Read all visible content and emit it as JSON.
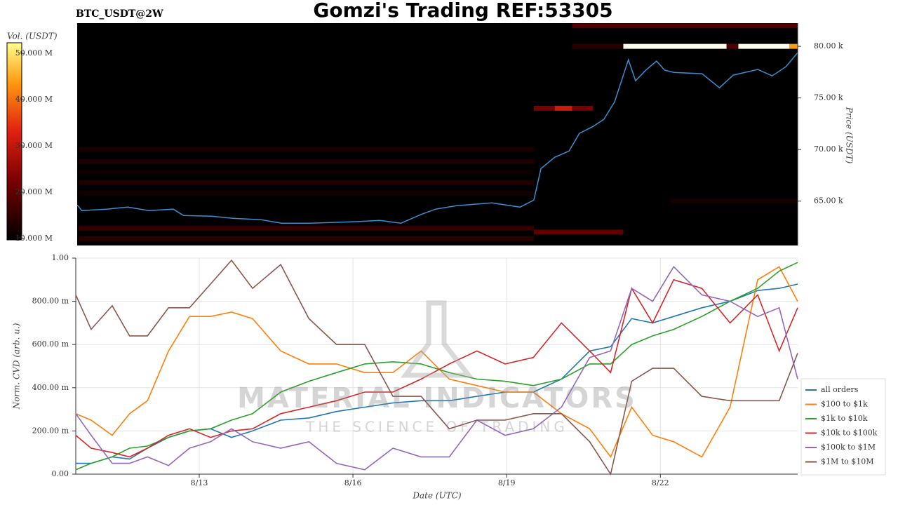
{
  "chart_data": [
    {
      "type": "heatmap",
      "title": "Gomzi's Trading REF:53305",
      "subtitle": "BTC_USDT@2W",
      "ylabel": "Price (USDT)",
      "xlim": [
        10.59,
        24.68
      ],
      "ylim": [
        60700,
        82250
      ],
      "yticks": [
        {
          "value": 65000,
          "label": "65.00 k"
        },
        {
          "value": 70000,
          "label": "70.00 k"
        },
        {
          "value": 75000,
          "label": "75.00 k"
        },
        {
          "value": 80000,
          "label": "80.00 k"
        }
      ],
      "colorbar": {
        "label": "Vol. (USDT)",
        "lim": [
          9700000,
          52300000
        ],
        "ticks": [
          {
            "value": 10000000,
            "label": "10.000 M"
          },
          {
            "value": 20000000,
            "label": "20.000 M"
          },
          {
            "value": 30000000,
            "label": "30.000 M"
          },
          {
            "value": 40000000,
            "label": "40.000 M"
          },
          {
            "value": 50000000,
            "label": "50.000 M"
          }
        ]
      },
      "levels": [
        {
          "price": 82000,
          "start": 20.27,
          "end": 24.68,
          "volume": 18000000
        },
        {
          "price": 80000,
          "start": 20.27,
          "end": 21.27,
          "volume": 14000000
        },
        {
          "price": 80000,
          "start": 21.27,
          "end": 23.29,
          "volume": 52000000
        },
        {
          "price": 80000,
          "start": 23.29,
          "end": 23.52,
          "volume": 18000000
        },
        {
          "price": 80000,
          "start": 23.52,
          "end": 24.52,
          "volume": 52000000
        },
        {
          "price": 80000,
          "start": 24.52,
          "end": 24.68,
          "volume": 44000000
        },
        {
          "price": 74000,
          "start": 19.52,
          "end": 19.93,
          "volume": 22000000
        },
        {
          "price": 74000,
          "start": 19.93,
          "end": 20.27,
          "volume": 31000000
        },
        {
          "price": 74000,
          "start": 20.27,
          "end": 20.68,
          "volume": 22000000
        },
        {
          "price": 70000,
          "start": 10.62,
          "end": 19.52,
          "volume": 12000000
        },
        {
          "price": 68840,
          "start": 10.62,
          "end": 19.52,
          "volume": 13000000
        },
        {
          "price": 67820,
          "start": 10.62,
          "end": 19.52,
          "volume": 11000000
        },
        {
          "price": 66800,
          "start": 10.62,
          "end": 19.52,
          "volume": 13000000
        },
        {
          "price": 65780,
          "start": 10.62,
          "end": 19.52,
          "volume": 11500000
        },
        {
          "price": 65000,
          "start": 22.19,
          "end": 24.68,
          "volume": 12000000
        },
        {
          "price": 62380,
          "start": 10.62,
          "end": 19.52,
          "volume": 15000000
        },
        {
          "price": 61360,
          "start": 10.62,
          "end": 19.52,
          "volume": 14000000
        },
        {
          "price": 62000,
          "start": 19.52,
          "end": 21.27,
          "volume": 20000000
        }
      ],
      "price_line": {
        "color": "#3a8fd0",
        "x": [
          10.59,
          10.68,
          11.16,
          11.58,
          11.99,
          12.47,
          12.67,
          13.22,
          13.63,
          14.18,
          14.59,
          15.14,
          15.96,
          16.51,
          16.92,
          17.33,
          17.6,
          18.01,
          18.7,
          19.25,
          19.52,
          19.66,
          19.93,
          20.21,
          20.41,
          20.68,
          20.89,
          21.1,
          21.37,
          21.51,
          21.71,
          21.92,
          22.08,
          22.26,
          22.81,
          23.15,
          23.42,
          23.9,
          24.18,
          24.45,
          24.68
        ],
        "values": [
          64626,
          64080,
          64220,
          64420,
          64080,
          64220,
          63600,
          63540,
          63330,
          63200,
          62860,
          62860,
          62990,
          63130,
          62860,
          63740,
          64220,
          64560,
          64830,
          64420,
          65100,
          68160,
          69250,
          69860,
          71560,
          72240,
          72930,
          74630,
          78710,
          76670,
          77690,
          78570,
          77690,
          77480,
          77350,
          75990,
          77210,
          77760,
          77140,
          78030,
          79390
        ]
      }
    },
    {
      "type": "line",
      "xlabel": "Date (UTC)",
      "ylabel": "Norm. CVD (arb. u.)",
      "xlim": [
        10.59,
        24.68
      ],
      "ylim": [
        0,
        1
      ],
      "xticks": [
        {
          "value": 13,
          "label": "8/13"
        },
        {
          "value": 16,
          "label": "8/16"
        },
        {
          "value": 19,
          "label": "8/19"
        },
        {
          "value": 22,
          "label": "8/22"
        }
      ],
      "yticks": [
        {
          "value": 0,
          "label": "0.00"
        },
        {
          "value": 0.2,
          "label": "200.00 m"
        },
        {
          "value": 0.4,
          "label": "400.00 m"
        },
        {
          "value": 0.6,
          "label": "600.00 m"
        },
        {
          "value": 0.8,
          "label": "800.00 m"
        },
        {
          "value": 1,
          "label": "1.00"
        }
      ],
      "grid": true,
      "legend": "right",
      "x": [
        10.59,
        10.89,
        11.3,
        11.64,
        11.99,
        12.4,
        12.81,
        13.22,
        13.63,
        14.04,
        14.59,
        15.14,
        15.68,
        16.23,
        16.78,
        17.33,
        17.88,
        18.42,
        18.97,
        19.52,
        20.07,
        20.62,
        21.03,
        21.44,
        21.85,
        22.26,
        22.81,
        23.36,
        23.9,
        24.32,
        24.68
      ],
      "series": [
        {
          "name": "all orders",
          "color": "#1f77b4",
          "values": [
            0.05,
            0.05,
            0.08,
            0.07,
            0.12,
            0.17,
            0.2,
            0.21,
            0.17,
            0.2,
            0.25,
            0.26,
            0.29,
            0.31,
            0.33,
            0.34,
            0.34,
            0.36,
            0.38,
            0.38,
            0.44,
            0.57,
            0.59,
            0.72,
            0.7,
            0.73,
            0.77,
            0.8,
            0.85,
            0.86,
            0.88
          ]
        },
        {
          "name": "$100 to $1k",
          "color": "#ff7f0e",
          "values": [
            0.28,
            0.25,
            0.18,
            0.28,
            0.34,
            0.57,
            0.73,
            0.73,
            0.75,
            0.72,
            0.57,
            0.51,
            0.51,
            0.47,
            0.47,
            0.57,
            0.44,
            0.41,
            0.38,
            0.38,
            0.28,
            0.21,
            0.08,
            0.31,
            0.18,
            0.15,
            0.08,
            0.31,
            0.9,
            0.96,
            0.8
          ]
        },
        {
          "name": "$1k to $10k",
          "color": "#2ca02c",
          "values": [
            0.02,
            0.05,
            0.08,
            0.12,
            0.13,
            0.17,
            0.2,
            0.21,
            0.25,
            0.28,
            0.38,
            0.43,
            0.47,
            0.51,
            0.52,
            0.51,
            0.47,
            0.44,
            0.43,
            0.41,
            0.44,
            0.51,
            0.51,
            0.6,
            0.64,
            0.67,
            0.73,
            0.8,
            0.86,
            0.94,
            0.98
          ]
        },
        {
          "name": "$10k to $100k",
          "color": "#d62728",
          "values": [
            0.18,
            0.12,
            0.1,
            0.08,
            0.12,
            0.18,
            0.21,
            0.17,
            0.2,
            0.21,
            0.28,
            0.31,
            0.34,
            0.38,
            0.38,
            0.44,
            0.51,
            0.57,
            0.51,
            0.54,
            0.7,
            0.57,
            0.47,
            0.86,
            0.7,
            0.9,
            0.86,
            0.7,
            0.83,
            0.57,
            0.77
          ]
        },
        {
          "name": "$100k to $1M",
          "color": "#9467bd",
          "values": [
            0.28,
            0.18,
            0.05,
            0.05,
            0.08,
            0.04,
            0.12,
            0.15,
            0.21,
            0.15,
            0.12,
            0.15,
            0.05,
            0.02,
            0.12,
            0.08,
            0.08,
            0.25,
            0.18,
            0.21,
            0.31,
            0.54,
            0.57,
            0.86,
            0.8,
            0.96,
            0.83,
            0.8,
            0.73,
            0.77,
            0.44
          ]
        },
        {
          "name": "$1M to $10M",
          "color": "#8c564b",
          "values": [
            0.83,
            0.67,
            0.78,
            0.64,
            0.64,
            0.77,
            0.77,
            0.88,
            0.99,
            0.86,
            0.97,
            0.72,
            0.6,
            0.6,
            0.36,
            0.36,
            0.21,
            0.25,
            0.25,
            0.28,
            0.28,
            0.15,
            0,
            0.43,
            0.49,
            0.49,
            0.36,
            0.34,
            0.34,
            0.34,
            0.56
          ]
        }
      ]
    }
  ],
  "watermark": {
    "brand": "MATERIAL INDICATORS",
    "tagline": "THE SCIENCE OF TRADING"
  }
}
